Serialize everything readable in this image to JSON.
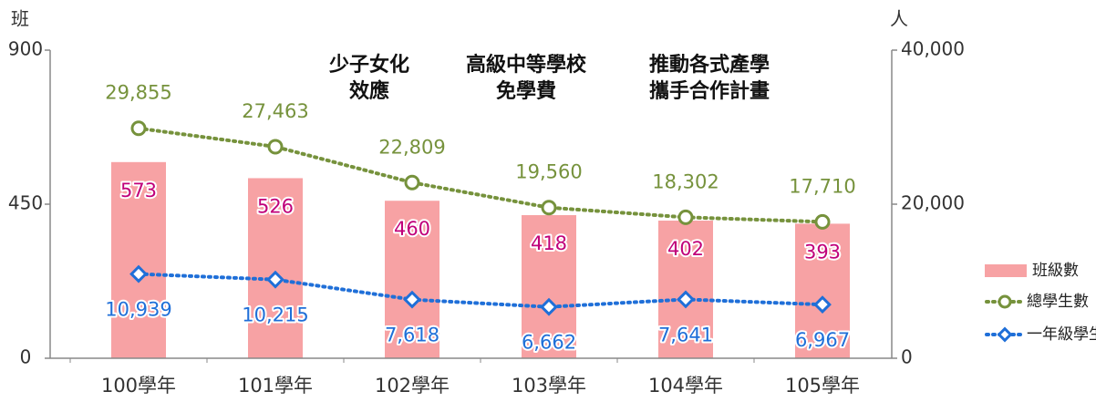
{
  "chart_data": {
    "type": "combo",
    "categories": [
      "100學年",
      "101學年",
      "102學年",
      "103學年",
      "104學年",
      "105學年"
    ],
    "ylabel": "班",
    "y2label": "人",
    "ylim": [
      0,
      900
    ],
    "yticks": [
      0,
      450,
      900
    ],
    "y2lim": [
      0,
      40000
    ],
    "y2ticks": [
      0,
      {
        "value": 20000,
        "label": "20,000"
      },
      {
        "value": 40000,
        "label": "40,000"
      }
    ],
    "grid": false,
    "legend": "right",
    "annotations": [
      {
        "lines": [
          "少子女化",
          "效應"
        ]
      },
      {
        "lines": [
          "高級中等學校",
          "免學費"
        ]
      },
      {
        "lines": [
          "推動各式產學",
          "攜手合作計畫"
        ]
      }
    ],
    "series": [
      {
        "name": "班級數",
        "type": "bar",
        "axis": "y",
        "color": "#f7a2a4",
        "label_color": "#c0007a",
        "values": [
          573,
          526,
          460,
          418,
          402,
          393
        ]
      },
      {
        "name": "總學生數",
        "type": "line",
        "axis": "y2",
        "color": "#76923c",
        "marker": "circle",
        "values": [
          29855,
          27463,
          22809,
          19560,
          18302,
          17710
        ],
        "value_labels": [
          "29,855",
          "27,463",
          "22,809",
          "19,560",
          "18,302",
          "17,710"
        ]
      },
      {
        "name": "一年級學生數",
        "type": "line",
        "axis": "y2",
        "color": "#1f6fd8",
        "marker": "diamond",
        "values": [
          10939,
          10215,
          7618,
          6662,
          7641,
          6967
        ],
        "value_labels": [
          "10,939",
          "10,215",
          "7,618",
          "6,662",
          "7,641",
          "6,967"
        ]
      }
    ]
  }
}
